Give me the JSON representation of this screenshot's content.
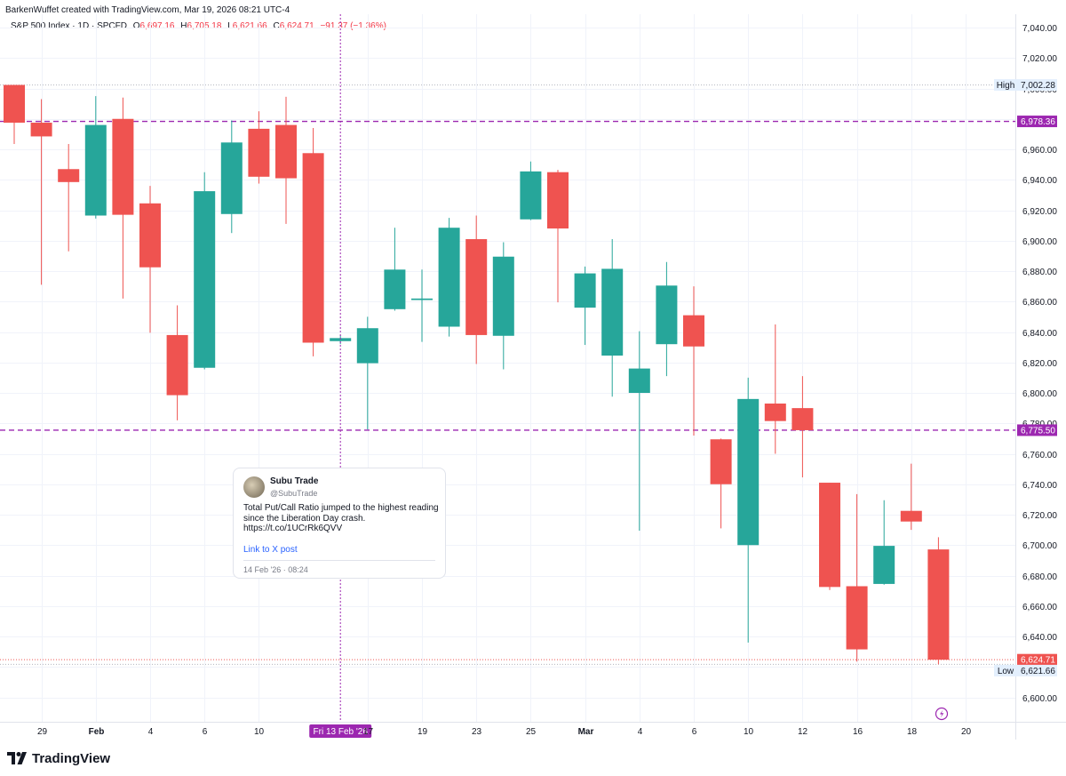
{
  "header": {
    "created_by": "BarkenWuffet created with TradingView.com, Mar 19, 2026 08:21 UTC-4"
  },
  "legend": {
    "symbol": "S&P 500 Index · 1D · SPCFD",
    "open_key": "O",
    "open": "6,697.16",
    "high_key": "H",
    "high": "6,705.18",
    "low_key": "L",
    "low": "6,621.66",
    "close_key": "C",
    "close": "6,624.71",
    "change": "−91.37 (−1.36%)"
  },
  "colors": {
    "up": "#26a69a",
    "down": "#ef5350",
    "hline": "#9c27b0",
    "crosshair": "#9c27b0",
    "grid": "#f0f3fa"
  },
  "price_labels": {
    "high_text": "High",
    "high_value": "7,002.28",
    "line1": "6,978.36",
    "line2": "6,775.50",
    "last": "6,624.71",
    "low_text": "Low",
    "low_value": "6,621.66"
  },
  "crosshair": {
    "date_label": "Fri 13 Feb '26"
  },
  "tweet": {
    "name": "Subu Trade",
    "handle": "@SubuTrade",
    "text": "Total Put/Call Ratio jumped to the highest reading since the Liberation Day crash. https://t.co/1UCrRk6QVV",
    "link_label": "Link to X post",
    "date": "14 Feb '26 · 08:24"
  },
  "brand": {
    "name": "TradingView"
  },
  "chart_data": {
    "type": "candlestick",
    "y_axis": {
      "range": [
        6580,
        7050
      ],
      "ticks": [
        "7,040.00",
        "7,020.00",
        "7,000.00",
        "6,980.00",
        "6,960.00",
        "6,940.00",
        "6,920.00",
        "6,900.00",
        "6,880.00",
        "6,860.00",
        "6,840.00",
        "6,820.00",
        "6,800.00",
        "6,780.00",
        "6,760.00",
        "6,740.00",
        "6,720.00",
        "6,700.00",
        "6,680.00",
        "6,660.00",
        "6,640.00",
        "6,620.00",
        "6,600.00"
      ],
      "tick_values": [
        7040,
        7020,
        7000,
        6980,
        6960,
        6940,
        6920,
        6900,
        6880,
        6860,
        6840,
        6820,
        6800,
        6780,
        6760,
        6740,
        6720,
        6700,
        6680,
        6660,
        6640,
        6620,
        6600
      ]
    },
    "x_axis": {
      "labels": [
        "29",
        "Feb",
        "4",
        "6",
        "10",
        "17",
        "19",
        "23",
        "25",
        "Mar",
        "4",
        "6",
        "10",
        "12",
        "16",
        "18",
        "20"
      ],
      "label_index": [
        1,
        3,
        5,
        7,
        9,
        13,
        15,
        17,
        19,
        21,
        23,
        25,
        27,
        29,
        31,
        33,
        35
      ]
    },
    "horizontal_lines": [
      6978.36,
      6775.5
    ],
    "high": 7002.28,
    "low": 6621.66,
    "last": 6624.71,
    "crosshair_index": 12,
    "candles": [
      {
        "date": "Jan 27",
        "o": 7002.3,
        "h": 7002.3,
        "l": 6963.5,
        "c": 6977.5
      },
      {
        "date": "Jan 28",
        "o": 6977.5,
        "h": 6993.0,
        "l": 6871.0,
        "c": 6968.5
      },
      {
        "date": "Jan 29",
        "o": 6947.0,
        "h": 6963.5,
        "l": 6893.0,
        "c": 6938.5
      },
      {
        "date": "Jan 30",
        "o": 6916.5,
        "h": 6995.0,
        "l": 6914.5,
        "c": 6976.0
      },
      {
        "date": "Feb 2",
        "o": 6980.0,
        "h": 6994.0,
        "l": 6862.0,
        "c": 6917.0
      },
      {
        "date": "Feb 3",
        "o": 6924.5,
        "h": 6936.0,
        "l": 6839.5,
        "c": 6882.5
      },
      {
        "date": "Feb 4",
        "o": 6838.0,
        "h": 6857.5,
        "l": 6782.0,
        "c": 6798.5
      },
      {
        "date": "Feb 5",
        "o": 6816.5,
        "h": 6945.0,
        "l": 6815.5,
        "c": 6932.5
      },
      {
        "date": "Feb 6",
        "o": 6917.5,
        "h": 6979.0,
        "l": 6905.0,
        "c": 6964.5
      },
      {
        "date": "Feb 9",
        "o": 6973.5,
        "h": 6985.0,
        "l": 6937.5,
        "c": 6942.0
      },
      {
        "date": "Feb 10",
        "o": 6976.0,
        "h": 6994.5,
        "l": 6911.0,
        "c": 6941.0
      },
      {
        "date": "Feb 11",
        "o": 6957.5,
        "h": 6974.0,
        "l": 6824.0,
        "c": 6833.0
      },
      {
        "date": "Feb 12",
        "o": 6834.0,
        "h": 6838.0,
        "l": 6832.0,
        "c": 6836.0
      },
      {
        "date": "Feb 13",
        "o": 6819.5,
        "h": 6850.0,
        "l": 6776.0,
        "c": 6842.5
      },
      {
        "date": "Feb 17",
        "o": 6855.0,
        "h": 6908.5,
        "l": 6854.0,
        "c": 6881.0
      },
      {
        "date": "Feb 18",
        "o": 6861.0,
        "h": 6881.0,
        "l": 6833.5,
        "c": 6862.0
      },
      {
        "date": "Feb 19",
        "o": 6843.5,
        "h": 6915.0,
        "l": 6837.0,
        "c": 6908.5
      },
      {
        "date": "Feb 20",
        "o": 6901.0,
        "h": 6916.5,
        "l": 6819.0,
        "c": 6838.0
      },
      {
        "date": "Feb 23",
        "o": 6837.5,
        "h": 6899.0,
        "l": 6815.5,
        "c": 6889.5
      },
      {
        "date": "Feb 24",
        "o": 6914.0,
        "h": 6952.0,
        "l": 6913.5,
        "c": 6945.5
      },
      {
        "date": "Feb 25",
        "o": 6945.0,
        "h": 6946.5,
        "l": 6859.5,
        "c": 6908.0
      },
      {
        "date": "Feb 26",
        "o": 6856.0,
        "h": 6883.0,
        "l": 6831.5,
        "c": 6878.5
      },
      {
        "date": "Feb 27",
        "o": 6824.5,
        "h": 6901.0,
        "l": 6797.5,
        "c": 6881.5
      },
      {
        "date": "Mar 2",
        "o": 6800.0,
        "h": 6840.5,
        "l": 6709.5,
        "c": 6816.0
      },
      {
        "date": "Mar 3",
        "o": 6832.0,
        "h": 6886.0,
        "l": 6811.0,
        "c": 6870.5
      },
      {
        "date": "Mar 4",
        "o": 6851.0,
        "h": 6870.0,
        "l": 6772.0,
        "c": 6830.5
      },
      {
        "date": "Mar 5",
        "o": 6769.5,
        "h": 6770.0,
        "l": 6711.0,
        "c": 6740.0
      },
      {
        "date": "Mar 6",
        "o": 6700.0,
        "h": 6810.0,
        "l": 6636.0,
        "c": 6796.0
      },
      {
        "date": "Mar 9",
        "o": 6793.0,
        "h": 6845.0,
        "l": 6760.0,
        "c": 6781.5
      },
      {
        "date": "Mar 10",
        "o": 6790.0,
        "h": 6811.0,
        "l": 6744.5,
        "c": 6775.5
      },
      {
        "date": "Mar 11",
        "o": 6741.0,
        "h": 6741.0,
        "l": 6670.5,
        "c": 6672.5
      },
      {
        "date": "Mar 12",
        "o": 6673.0,
        "h": 6733.5,
        "l": 6623.5,
        "c": 6631.5
      },
      {
        "date": "Mar 13",
        "o": 6674.5,
        "h": 6729.5,
        "l": 6674.0,
        "c": 6699.5
      },
      {
        "date": "Mar 16",
        "o": 6722.5,
        "h": 6753.5,
        "l": 6710.0,
        "c": 6715.5
      },
      {
        "date": "Mar 17",
        "o": 6697.16,
        "h": 6705.18,
        "l": 6621.66,
        "c": 6624.71
      }
    ]
  }
}
